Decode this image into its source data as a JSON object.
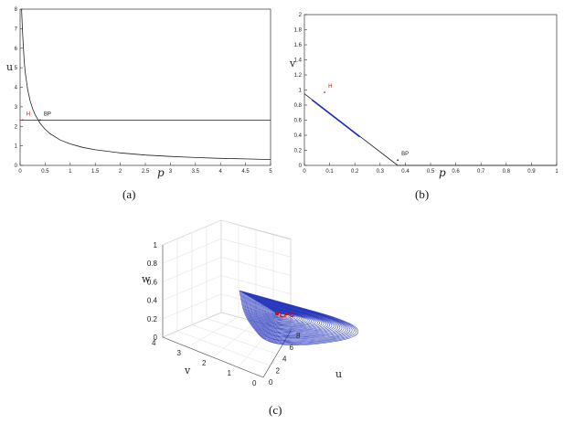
{
  "chart_data": [
    {
      "type": "line",
      "id": "a",
      "caption": "(a)",
      "xlabel": "p",
      "ylabel": "u",
      "xlim": [
        0,
        5
      ],
      "ylim": [
        0,
        8
      ],
      "xticks": [
        "0",
        "0.5",
        "1",
        "1.5",
        "2",
        "2.5",
        "3",
        "3.5",
        "4",
        "4.5",
        "5"
      ],
      "yticks": [
        "0",
        "1",
        "2",
        "3",
        "4",
        "5",
        "6",
        "7",
        "8"
      ],
      "series": [
        {
          "kind": "curve",
          "color": "#222222",
          "x": [
            0.03,
            0.05,
            0.08,
            0.1,
            0.15,
            0.2,
            0.25,
            0.3,
            0.4,
            0.5,
            0.6,
            0.8,
            1.0,
            1.25,
            1.5,
            2.0,
            2.5,
            3.0,
            3.5,
            4.0,
            4.5,
            5.0
          ],
          "y": [
            8.0,
            6.8,
            5.4,
            4.8,
            3.9,
            3.3,
            2.9,
            2.6,
            2.15,
            1.85,
            1.62,
            1.3,
            1.1,
            0.92,
            0.8,
            0.64,
            0.53,
            0.46,
            0.4,
            0.36,
            0.33,
            0.3
          ]
        },
        {
          "kind": "line",
          "color": "#222222",
          "x": [
            0,
            5
          ],
          "y": [
            2.32,
            2.32
          ]
        }
      ],
      "annotations": [
        {
          "text": "H",
          "x": 0.05,
          "y": 2.32,
          "color": "#cc1010"
        },
        {
          "text": "BP",
          "x": 0.4,
          "y": 2.32,
          "color": "#222222"
        }
      ]
    },
    {
      "type": "line",
      "id": "b",
      "caption": "(b)",
      "xlabel": "p",
      "ylabel": "v",
      "xlim": [
        0,
        1
      ],
      "ylim": [
        0,
        2
      ],
      "xticks": [
        "0",
        "0.1",
        "0.2",
        "0.3",
        "0.4",
        "0.5",
        "0.6",
        "0.7",
        "0.8",
        "0.9",
        "1"
      ],
      "yticks": [
        "0",
        "0.2",
        "0.4",
        "0.6",
        "0.8",
        "1",
        "1.2",
        "1.4",
        "1.6",
        "1.8",
        "2"
      ],
      "series": [
        {
          "kind": "line",
          "color": "#222222",
          "x": [
            0,
            0.37
          ],
          "y": [
            0.95,
            0
          ]
        },
        {
          "kind": "line",
          "color": "#1a2bb8",
          "x": [
            0.03,
            0.22
          ],
          "y": [
            0.87,
            0.38
          ]
        },
        {
          "kind": "line",
          "color": "#222222",
          "x": [
            0.37,
            1
          ],
          "y": [
            0,
            0
          ]
        }
      ],
      "annotations": [
        {
          "text": "H",
          "x": 0.08,
          "y": 0.97,
          "color": "#cc1010"
        },
        {
          "text": "BP",
          "x": 0.37,
          "y": 0.07,
          "color": "#222222"
        }
      ]
    },
    {
      "type": "line",
      "id": "c",
      "caption": "(c)",
      "xlabel": "u",
      "ylabel": "v",
      "zlabel": "w",
      "xticks": [
        "0",
        "2",
        "4",
        "6",
        "8"
      ],
      "yticks": [
        "0",
        "1",
        "2",
        "3",
        "4"
      ],
      "zticks": [
        "0",
        "0.2",
        "0.4",
        "0.6",
        "0.8",
        "1"
      ],
      "series": [
        {
          "kind": "limit-cycles",
          "name": "",
          "color": "#1a2bb8"
        }
      ],
      "annotations": [
        {
          "text": "LPC",
          "color": "#cc1010"
        }
      ]
    }
  ],
  "colors": {
    "curve": "#222222",
    "limit_cycle": "#1a2bb8",
    "marker": "#cc1010",
    "grid3d": "#d0d0d0"
  }
}
